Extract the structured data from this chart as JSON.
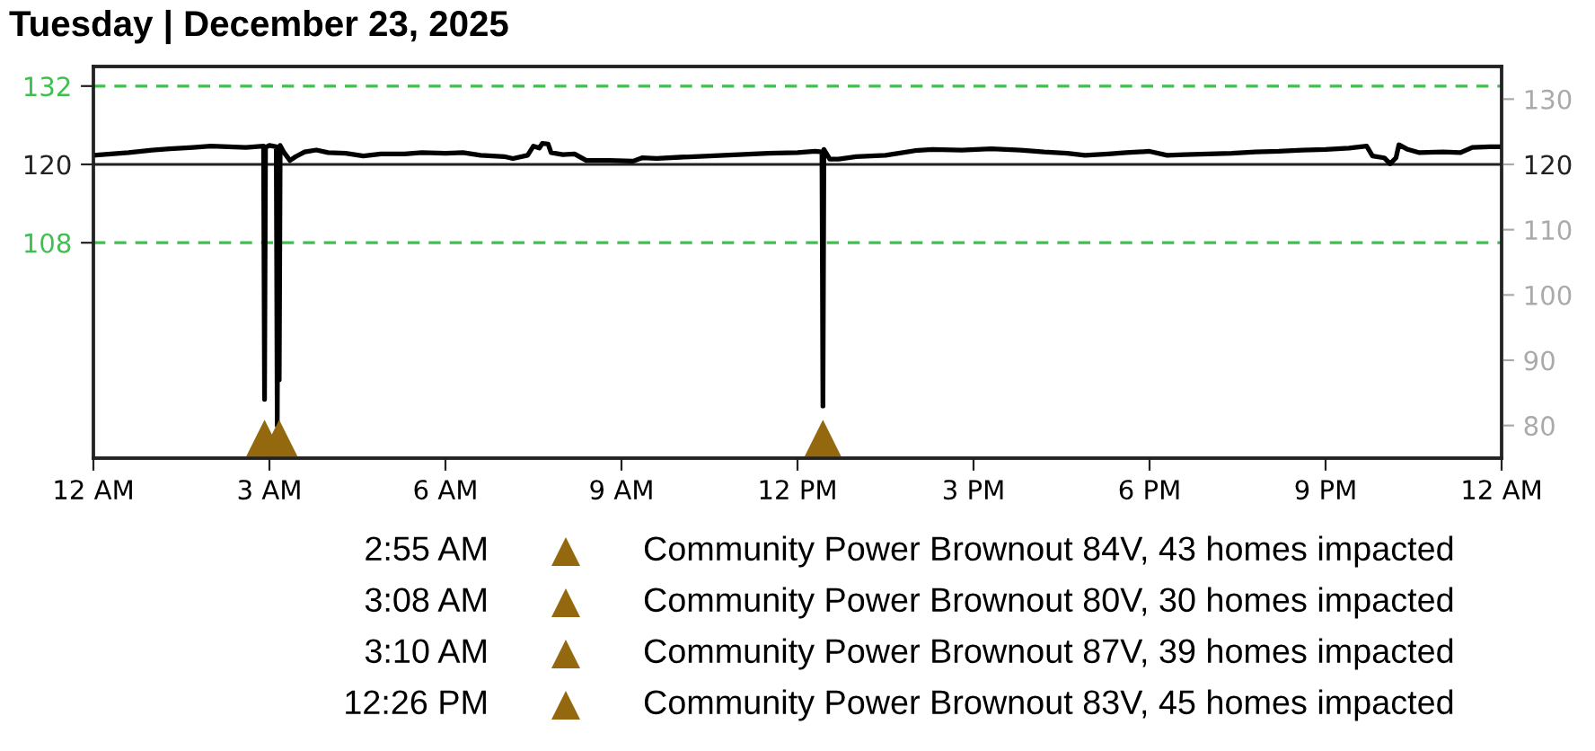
{
  "chart_data": {
    "type": "line",
    "title": "Tuesday | December 23, 2025",
    "xlim": [
      "2025-12-23T00:00",
      "2025-12-24T00:00"
    ],
    "xticks": [
      {
        "value": "2025-12-23T00:00",
        "label": "12 AM"
      },
      {
        "value": "2025-12-23T03:00",
        "label": "3 AM"
      },
      {
        "value": "2025-12-23T06:00",
        "label": "6 AM"
      },
      {
        "value": "2025-12-23T09:00",
        "label": "9 AM"
      },
      {
        "value": "2025-12-23T12:00",
        "label": "12 PM"
      },
      {
        "value": "2025-12-23T15:00",
        "label": "3 PM"
      },
      {
        "value": "2025-12-23T18:00",
        "label": "6 PM"
      },
      {
        "value": "2025-12-23T21:00",
        "label": "9 PM"
      },
      {
        "value": "2025-12-24T00:00",
        "label": "12 AM"
      }
    ],
    "ylim": [
      75,
      135
    ],
    "yticks": [
      108,
      120,
      132
    ],
    "y2lim": [
      75,
      135
    ],
    "y2ticks": [
      80,
      90,
      100,
      110,
      120,
      130
    ],
    "ref_lines": [
      {
        "axis": "y",
        "value": 132,
        "color": "#3fbf4f",
        "line_style": "dashed"
      },
      {
        "axis": "y",
        "value": 120,
        "color": "#222222",
        "line_style": "solid"
      },
      {
        "axis": "y",
        "value": 108,
        "color": "#3fbf4f",
        "line_style": "dashed"
      }
    ],
    "series": [
      {
        "color": "#000000",
        "line_style": "solid",
        "x": [
          "2025-12-23T00:00",
          "2025-12-23T00:18",
          "2025-12-23T00:36",
          "2025-12-23T01:00",
          "2025-12-23T01:18",
          "2025-12-23T01:42",
          "2025-12-23T02:00",
          "2025-12-23T02:18",
          "2025-12-23T02:36",
          "2025-12-23T02:54",
          "2025-12-23T02:55",
          "2025-12-23T02:56",
          "2025-12-23T03:00",
          "2025-12-23T03:07",
          "2025-12-23T03:08",
          "2025-12-23T03:09",
          "2025-12-23T03:10",
          "2025-12-23T03:11",
          "2025-12-23T03:15",
          "2025-12-23T03:21",
          "2025-12-23T03:27",
          "2025-12-23T03:36",
          "2025-12-23T03:48",
          "2025-12-23T04:00",
          "2025-12-23T04:18",
          "2025-12-23T04:36",
          "2025-12-23T04:54",
          "2025-12-23T05:18",
          "2025-12-23T05:36",
          "2025-12-23T06:00",
          "2025-12-23T06:18",
          "2025-12-23T06:36",
          "2025-12-23T07:00",
          "2025-12-23T07:09",
          "2025-12-23T07:24",
          "2025-12-23T07:30",
          "2025-12-23T07:36",
          "2025-12-23T07:39",
          "2025-12-23T07:45",
          "2025-12-23T07:48",
          "2025-12-23T08:00",
          "2025-12-23T08:12",
          "2025-12-23T08:24",
          "2025-12-23T08:48",
          "2025-12-23T09:12",
          "2025-12-23T09:21",
          "2025-12-23T09:36",
          "2025-12-23T10:00",
          "2025-12-23T10:30",
          "2025-12-23T11:00",
          "2025-12-23T11:30",
          "2025-12-23T12:00",
          "2025-12-23T12:18",
          "2025-12-23T12:25",
          "2025-12-23T12:26",
          "2025-12-23T12:27",
          "2025-12-23T12:33",
          "2025-12-23T12:42",
          "2025-12-23T13:00",
          "2025-12-23T13:30",
          "2025-12-23T14:00",
          "2025-12-23T14:18",
          "2025-12-23T14:48",
          "2025-12-23T15:18",
          "2025-12-23T15:48",
          "2025-12-23T16:12",
          "2025-12-23T16:36",
          "2025-12-23T16:54",
          "2025-12-23T17:18",
          "2025-12-23T17:36",
          "2025-12-23T18:00",
          "2025-12-23T18:18",
          "2025-12-23T18:36",
          "2025-12-23T19:00",
          "2025-12-23T19:24",
          "2025-12-23T19:48",
          "2025-12-23T20:12",
          "2025-12-23T20:36",
          "2025-12-23T21:00",
          "2025-12-23T21:24",
          "2025-12-23T21:42",
          "2025-12-23T21:48",
          "2025-12-23T22:00",
          "2025-12-23T22:06",
          "2025-12-23T22:12",
          "2025-12-23T22:15",
          "2025-12-23T22:24",
          "2025-12-23T22:36",
          "2025-12-23T23:00",
          "2025-12-23T23:18",
          "2025-12-23T23:30",
          "2025-12-23T23:48",
          "2025-12-24T00:00"
        ],
        "values": [
          121.4,
          121.6,
          121.8,
          122.2,
          122.4,
          122.6,
          122.8,
          122.7,
          122.6,
          122.8,
          84,
          122.6,
          122.9,
          122.7,
          80,
          122.5,
          87,
          122.9,
          121.8,
          120.6,
          121.2,
          121.9,
          122.2,
          121.8,
          121.7,
          121.3,
          121.6,
          121.6,
          121.8,
          121.7,
          121.8,
          121.4,
          121.2,
          120.9,
          121.4,
          122.8,
          122.5,
          123.2,
          123.1,
          121.8,
          121.5,
          121.6,
          120.6,
          120.6,
          120.5,
          121.0,
          120.9,
          121.1,
          121.3,
          121.5,
          121.7,
          121.8,
          122.0,
          121.9,
          83,
          122.3,
          120.8,
          120.8,
          121.2,
          121.4,
          122.1,
          122.3,
          122.2,
          122.4,
          122.2,
          121.9,
          121.7,
          121.4,
          121.6,
          121.8,
          122.0,
          121.4,
          121.5,
          121.6,
          121.7,
          121.9,
          122.0,
          122.2,
          122.3,
          122.5,
          122.8,
          121.3,
          121.0,
          120.1,
          121.0,
          123.0,
          122.3,
          121.8,
          121.9,
          121.8,
          122.6,
          122.7,
          122.7
        ]
      },
      {
        "type": "scatter",
        "marker": "triangle",
        "color": "#94680f",
        "name": "Community Power Brownout 84V, 43 homes impacted",
        "x": [
          "2025-12-23T02:55"
        ],
        "values": [
          78
        ]
      },
      {
        "type": "scatter",
        "marker": "triangle",
        "color": "#94680f",
        "name": "Community Power Brownout 80V, 30 homes impacted"
      },
      {
        "type": "scatter",
        "marker": "triangle",
        "color": "#94680f",
        "name": "Community Power Brownout 87V, 39 homes impacted",
        "x": [
          "2025-12-23T03:10"
        ],
        "values": [
          78
        ]
      },
      {
        "type": "scatter",
        "marker": "triangle",
        "color": "#94680f",
        "name": "Community Power Brownout 83V, 45 homes impacted",
        "x": [
          "2025-12-23T12:26"
        ],
        "values": [
          78
        ]
      }
    ],
    "annotations": [
      "2:55 AM",
      "3:08 AM",
      "3:10 AM",
      "12:26 PM"
    ],
    "legend": "bottom"
  }
}
